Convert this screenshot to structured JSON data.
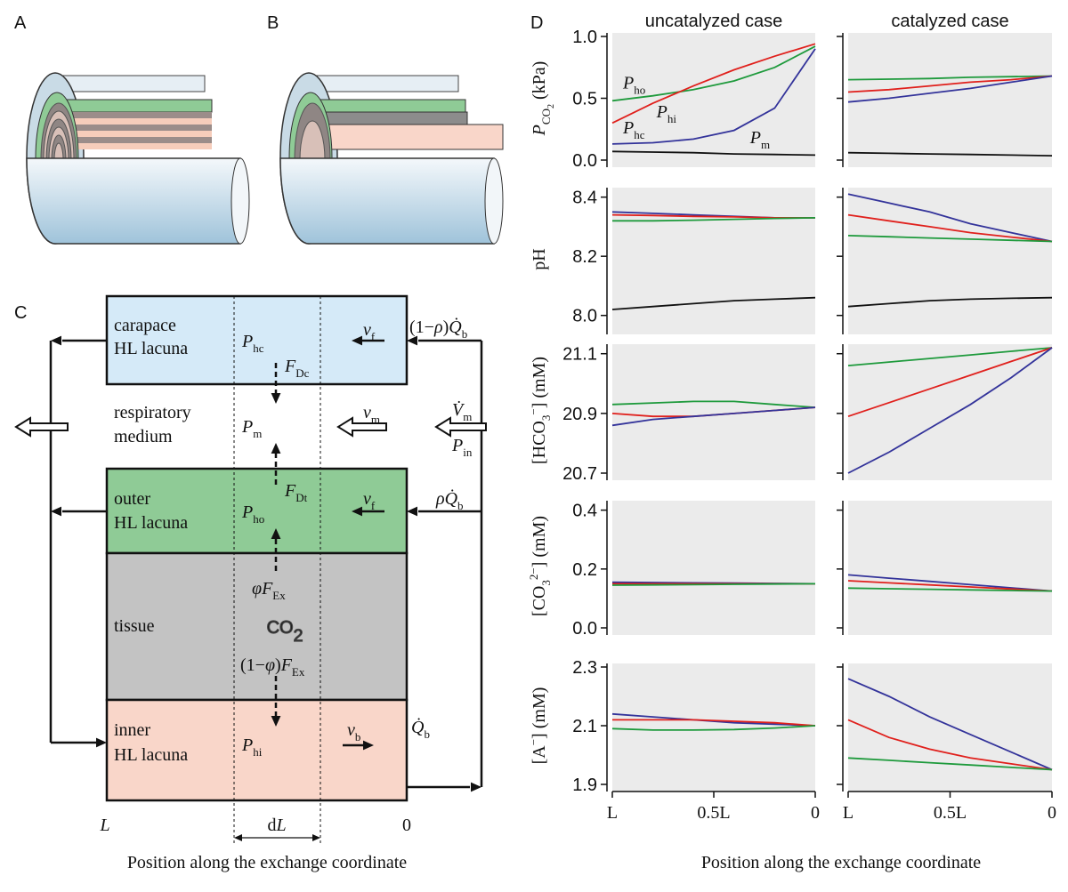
{
  "panel_labels": [
    "A",
    "B",
    "C",
    "D"
  ],
  "diagram": {
    "labels": [
      "carapace",
      "HL lacuna",
      [
        {
          "text": "P",
          "style": "italic"
        },
        {
          "text": "hc",
          "style": "sub"
        }
      ],
      [
        {
          "text": "v",
          "style": "italic"
        },
        {
          "text": "f",
          "style": "sub"
        }
      ],
      [
        {
          "text": "(1−"
        },
        {
          "text": "ρ",
          "style": "italic"
        },
        {
          "text": ")"
        },
        {
          "text": "Q̇",
          "style": "italic"
        },
        {
          "text": "b",
          "style": "sub"
        }
      ],
      [
        {
          "text": "F",
          "style": "italic"
        },
        {
          "text": "Dc",
          "style": "sub"
        }
      ],
      "respiratory",
      "medium",
      [
        {
          "text": "P",
          "style": "italic"
        },
        {
          "text": "m",
          "style": "sub"
        }
      ],
      [
        {
          "text": "v",
          "style": "italic"
        },
        {
          "text": "m",
          "style": "sub"
        }
      ],
      [
        {
          "text": "V̇",
          "style": "italic"
        },
        {
          "text": "m",
          "style": "sub"
        }
      ],
      [
        {
          "text": "P",
          "style": "italic"
        },
        {
          "text": "in",
          "style": "sub"
        }
      ],
      [
        {
          "text": "F",
          "style": "italic"
        },
        {
          "text": "Dt",
          "style": "sub"
        }
      ],
      "outer",
      "HL lacuna",
      [
        {
          "text": "P",
          "style": "italic"
        },
        {
          "text": "ho",
          "style": "sub"
        }
      ],
      [
        {
          "text": "v",
          "style": "italic"
        },
        {
          "text": "f",
          "style": "sub"
        }
      ],
      [
        {
          "text": "ρQ̇",
          "style": "italic"
        },
        {
          "text": "b",
          "style": "sub"
        }
      ],
      [
        {
          "text": "φF",
          "style": "italic"
        },
        {
          "text": "Ex",
          "style": "sub"
        }
      ],
      "tissue",
      [
        {
          "text": "CO"
        },
        {
          "text": "2",
          "style": "sub"
        }
      ],
      [
        {
          "text": "(1−"
        },
        {
          "text": "φ",
          "style": "italic"
        },
        {
          "text": ")"
        },
        {
          "text": "F",
          "style": "italic"
        },
        {
          "text": "Ex",
          "style": "sub"
        }
      ],
      "inner",
      "HL lacuna",
      [
        {
          "text": "P",
          "style": "italic"
        },
        {
          "text": "hi",
          "style": "sub"
        }
      ],
      [
        {
          "text": "v",
          "style": "italic"
        },
        {
          "text": "b",
          "style": "sub"
        }
      ],
      [
        {
          "text": "Q̇",
          "style": "italic"
        },
        {
          "text": "b",
          "style": "sub"
        }
      ],
      [
        {
          "text": "L",
          "style": "italic"
        }
      ],
      [
        {
          "text": "d"
        },
        {
          "text": "L",
          "style": "italic"
        }
      ],
      "0",
      "Position along the exchange coordinate"
    ]
  },
  "d_xlabel": "Position along the exchange coordinate",
  "chart_data": [
    {
      "type": "line",
      "title": "uncatalyzed case",
      "ylabel": [
        {
          "text": "P",
          "style": "italic"
        },
        {
          "text": "CO",
          "style": "sub"
        },
        {
          "text": "2",
          "style": "sub2"
        },
        {
          "text": " (kPa)"
        }
      ],
      "x": [
        1,
        0.8,
        0.6,
        0.4,
        0.2,
        0
      ],
      "xlim": [
        1,
        0
      ],
      "ylim": [
        0,
        1
      ],
      "yticks": [
        {
          "value": 0,
          "label": "0.0"
        },
        0.5,
        {
          "value": 1,
          "label": "1.0"
        }
      ],
      "series": [
        {
          "name": [
            {
              "text": "P",
              "style": "italic"
            },
            {
              "text": "ho",
              "style": "sub"
            }
          ],
          "color": "#1e9a3c",
          "values": [
            0.48,
            0.52,
            0.57,
            0.64,
            0.75,
            0.92
          ]
        },
        {
          "name": [
            {
              "text": "P",
              "style": "italic"
            },
            {
              "text": "hi",
              "style": "sub"
            }
          ],
          "color": "#e0201c",
          "values": [
            0.3,
            0.46,
            0.6,
            0.73,
            0.84,
            0.94
          ]
        },
        {
          "name": [
            {
              "text": "P",
              "style": "italic"
            },
            {
              "text": "hc",
              "style": "sub"
            }
          ],
          "color": "#33339a",
          "values": [
            0.13,
            0.14,
            0.17,
            0.24,
            0.42,
            0.9
          ]
        },
        {
          "name": [
            {
              "text": "P",
              "style": "italic"
            },
            {
              "text": "m",
              "style": "sub"
            }
          ],
          "color": "#111111",
          "values": [
            0.07,
            0.065,
            0.06,
            0.05,
            0.045,
            0.04
          ]
        }
      ]
    },
    {
      "type": "line",
      "title": "catalyzed case",
      "x": [
        1,
        0.8,
        0.6,
        0.4,
        0.2,
        0
      ],
      "xlim": [
        1,
        0
      ],
      "ylim": [
        0,
        1
      ],
      "yticks": [
        0,
        0.5,
        1
      ],
      "series": [
        {
          "color": "#1e9a3c",
          "values": [
            0.65,
            0.655,
            0.66,
            0.67,
            0.675,
            0.68
          ]
        },
        {
          "color": "#e0201c",
          "values": [
            0.55,
            0.57,
            0.6,
            0.63,
            0.65,
            0.68
          ]
        },
        {
          "color": "#33339a",
          "values": [
            0.47,
            0.5,
            0.54,
            0.58,
            0.63,
            0.68
          ]
        },
        {
          "color": "#111111",
          "values": [
            0.06,
            0.055,
            0.05,
            0.045,
            0.04,
            0.035
          ]
        }
      ]
    },
    {
      "type": "line",
      "ylabel": [
        {
          "text": "pH"
        }
      ],
      "x": [
        1,
        0.8,
        0.6,
        0.4,
        0.2,
        0
      ],
      "xlim": [
        1,
        0
      ],
      "ylim": [
        7.96,
        8.42
      ],
      "yticks": [
        {
          "value": 8,
          "label": "8.0"
        },
        8.2,
        8.4
      ],
      "series": [
        {
          "color": "#33339a",
          "values": [
            8.35,
            8.345,
            8.34,
            8.335,
            8.33,
            8.33
          ]
        },
        {
          "color": "#e0201c",
          "values": [
            8.34,
            8.338,
            8.335,
            8.333,
            8.33,
            8.33
          ]
        },
        {
          "color": "#1e9a3c",
          "values": [
            8.32,
            8.32,
            8.322,
            8.325,
            8.328,
            8.33
          ]
        },
        {
          "color": "#111111",
          "values": [
            8.02,
            8.03,
            8.04,
            8.05,
            8.055,
            8.06
          ]
        }
      ]
    },
    {
      "type": "line",
      "x": [
        1,
        0.8,
        0.6,
        0.4,
        0.2,
        0
      ],
      "xlim": [
        1,
        0
      ],
      "ylim": [
        7.96,
        8.42
      ],
      "yticks": [
        8,
        8.2,
        8.4
      ],
      "series": [
        {
          "color": "#33339a",
          "values": [
            8.41,
            8.38,
            8.35,
            8.31,
            8.28,
            8.25
          ]
        },
        {
          "color": "#e0201c",
          "values": [
            8.34,
            8.32,
            8.3,
            8.28,
            8.265,
            8.25
          ]
        },
        {
          "color": "#1e9a3c",
          "values": [
            8.27,
            8.266,
            8.262,
            8.258,
            8.254,
            8.25
          ]
        },
        {
          "color": "#111111",
          "values": [
            8.03,
            8.04,
            8.05,
            8.055,
            8.058,
            8.06
          ]
        }
      ]
    },
    {
      "type": "line",
      "ylabel": [
        {
          "text": "[HCO"
        },
        {
          "text": "3",
          "style": "sub"
        },
        {
          "text": "−",
          "style": "sup"
        },
        {
          "text": "] (mM)"
        }
      ],
      "x": [
        1,
        0.8,
        0.6,
        0.4,
        0.2,
        0
      ],
      "xlim": [
        1,
        0
      ],
      "ylim": [
        20.7,
        21.12
      ],
      "yticks": [
        20.7,
        20.9,
        21.1
      ],
      "series": [
        {
          "color": "#1e9a3c",
          "values": [
            20.93,
            20.935,
            20.94,
            20.94,
            20.93,
            20.92
          ]
        },
        {
          "color": "#e0201c",
          "values": [
            20.9,
            20.89,
            20.89,
            20.9,
            20.91,
            20.92
          ]
        },
        {
          "color": "#33339a",
          "values": [
            20.86,
            20.88,
            20.89,
            20.9,
            20.91,
            20.92
          ]
        }
      ]
    },
    {
      "type": "line",
      "x": [
        1,
        0.8,
        0.6,
        0.4,
        0.2,
        0
      ],
      "xlim": [
        1,
        0
      ],
      "ylim": [
        20.7,
        21.12
      ],
      "yticks": [
        20.7,
        20.9,
        21.1
      ],
      "series": [
        {
          "color": "#1e9a3c",
          "values": [
            21.06,
            21.072,
            21.084,
            21.096,
            21.108,
            21.12
          ]
        },
        {
          "color": "#e0201c",
          "values": [
            20.89,
            20.936,
            20.982,
            21.028,
            21.074,
            21.12
          ]
        },
        {
          "color": "#33339a",
          "values": [
            20.7,
            20.77,
            20.85,
            20.93,
            21.02,
            21.12
          ]
        }
      ]
    },
    {
      "type": "line",
      "ylabel": [
        {
          "text": "[CO"
        },
        {
          "text": "3",
          "style": "sub"
        },
        {
          "text": "2−",
          "style": "sup"
        },
        {
          "text": "] (mM)"
        }
      ],
      "x": [
        1,
        0.8,
        0.6,
        0.4,
        0.2,
        0
      ],
      "xlim": [
        1,
        0
      ],
      "ylim": [
        0,
        0.42
      ],
      "yticks": [
        {
          "value": 0,
          "label": "0.0"
        },
        0.2,
        0.4
      ],
      "series": [
        {
          "color": "#33339a",
          "values": [
            0.155,
            0.154,
            0.153,
            0.152,
            0.151,
            0.15
          ]
        },
        {
          "color": "#e0201c",
          "values": [
            0.15,
            0.15,
            0.15,
            0.15,
            0.15,
            0.15
          ]
        },
        {
          "color": "#1e9a3c",
          "values": [
            0.145,
            0.146,
            0.147,
            0.148,
            0.149,
            0.15
          ]
        }
      ]
    },
    {
      "type": "line",
      "x": [
        1,
        0.8,
        0.6,
        0.4,
        0.2,
        0
      ],
      "xlim": [
        1,
        0
      ],
      "ylim": [
        0,
        0.42
      ],
      "yticks": [
        0,
        0.2,
        0.4
      ],
      "series": [
        {
          "color": "#33339a",
          "values": [
            0.18,
            0.169,
            0.158,
            0.147,
            0.136,
            0.125
          ]
        },
        {
          "color": "#e0201c",
          "values": [
            0.16,
            0.153,
            0.146,
            0.139,
            0.132,
            0.125
          ]
        },
        {
          "color": "#1e9a3c",
          "values": [
            0.135,
            0.133,
            0.131,
            0.129,
            0.127,
            0.125
          ]
        }
      ]
    },
    {
      "type": "line",
      "ylabel": [
        {
          "text": "[A"
        },
        {
          "text": "−",
          "style": "sup"
        },
        {
          "text": "] (mM)"
        }
      ],
      "x": [
        1,
        0.8,
        0.6,
        0.4,
        0.2,
        0
      ],
      "xlim": [
        1,
        0
      ],
      "ylim": [
        1.9,
        2.3
      ],
      "yticks": [
        1.9,
        2.1,
        2.3
      ],
      "xticks": [
        {
          "value": 1,
          "label": "L"
        },
        {
          "value": 0.5,
          "label": "0.5L"
        },
        0
      ],
      "series": [
        {
          "color": "#33339a",
          "values": [
            2.14,
            2.13,
            2.12,
            2.11,
            2.105,
            2.1
          ]
        },
        {
          "color": "#e0201c",
          "values": [
            2.12,
            2.12,
            2.12,
            2.115,
            2.11,
            2.1
          ]
        },
        {
          "color": "#1e9a3c",
          "values": [
            2.09,
            2.085,
            2.085,
            2.087,
            2.092,
            2.1
          ]
        }
      ]
    },
    {
      "type": "line",
      "x": [
        1,
        0.8,
        0.6,
        0.4,
        0.2,
        0
      ],
      "xlim": [
        1,
        0
      ],
      "ylim": [
        1.9,
        2.3
      ],
      "yticks": [
        1.9,
        2.1,
        2.3
      ],
      "xticks": [
        {
          "value": 1,
          "label": "L"
        },
        {
          "value": 0.5,
          "label": "0.5L"
        },
        0
      ],
      "series": [
        {
          "color": "#33339a",
          "values": [
            2.26,
            2.2,
            2.13,
            2.07,
            2.01,
            1.95
          ]
        },
        {
          "color": "#e0201c",
          "values": [
            2.12,
            2.06,
            2.02,
            1.99,
            1.97,
            1.95
          ]
        },
        {
          "color": "#1e9a3c",
          "values": [
            1.99,
            1.982,
            1.974,
            1.966,
            1.958,
            1.95
          ]
        }
      ]
    }
  ]
}
